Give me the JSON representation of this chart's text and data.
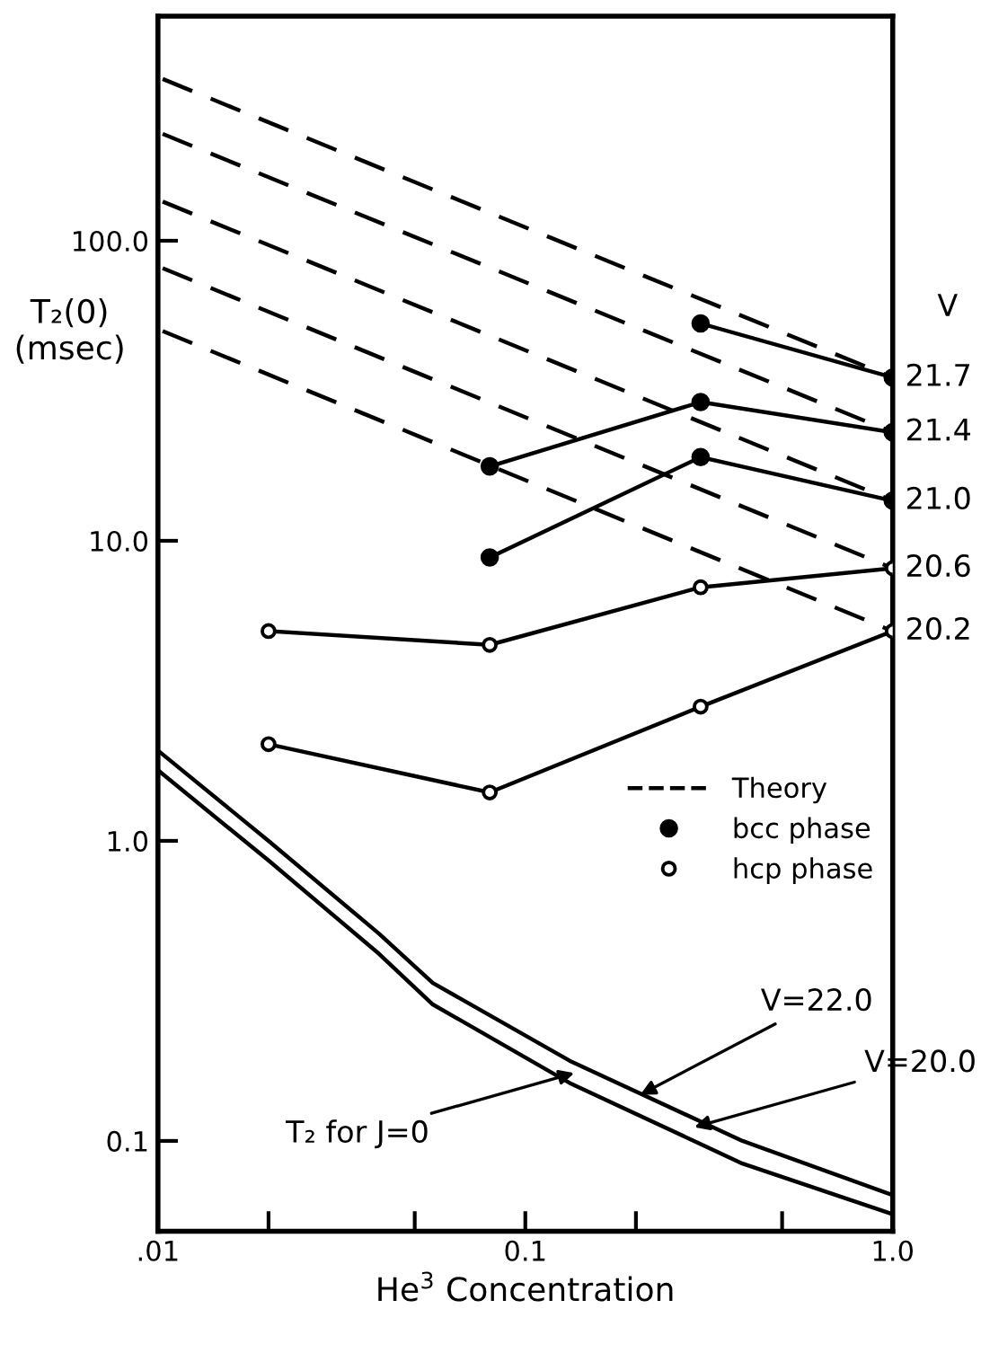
{
  "chart_data": {
    "type": "line",
    "xlabel": "He$^{3}$ Concentration",
    "ylabel": "T₂(0)\n(msec)",
    "log": "xy",
    "grid": false,
    "legend": "right",
    "xlim": [
      0.01,
      1.0
    ],
    "xticks": [
      {
        "value": 0.01,
        "label": ".01"
      },
      {
        "value": 0.02,
        "label": null
      },
      {
        "value": 0.05,
        "label": null
      },
      {
        "value": 0.1,
        "label": "0.1"
      },
      {
        "value": 0.2,
        "label": null
      },
      {
        "value": 0.5,
        "label": null
      },
      {
        "value": 1.0,
        "label": "1.0"
      }
    ],
    "ylim": [
      0.05,
      560
    ],
    "yticks": [
      {
        "value": 0.1,
        "label": "0.1"
      },
      {
        "value": 1,
        "label": "1.0"
      },
      {
        "value": 10,
        "label": "10.0"
      },
      {
        "value": 100,
        "label": "100.0"
      }
    ],
    "series": [
      {
        "name": "Theory",
        "color": "#000000",
        "line_style": "dashed",
        "x": [
          0.0103,
          1.0
        ],
        "values": [
          346,
          35
        ]
      },
      {
        "color": "#000000",
        "line_style": "dashed",
        "x": [
          0.0103,
          1.0
        ],
        "values": [
          227,
          23
        ]
      },
      {
        "color": "#000000",
        "line_style": "dashed",
        "x": [
          0.0103,
          1.0
        ],
        "values": [
          135,
          13.6
        ]
      },
      {
        "color": "#000000",
        "line_style": "dashed",
        "x": [
          0.0103,
          1.0
        ],
        "values": [
          81,
          8.1
        ]
      },
      {
        "color": "#000000",
        "line_style": "dashed",
        "x": [
          0.0103,
          1.0
        ],
        "values": [
          50,
          5.0
        ]
      },
      {
        "name": "bcc phase",
        "color": "#000000",
        "line_style": "solid",
        "marker": "circle",
        "x": [
          0.3,
          1.0
        ],
        "values": [
          53,
          35
        ]
      },
      {
        "color": "#000000",
        "line_style": "solid",
        "marker": "circle",
        "x": [
          0.08,
          0.3,
          1.0
        ],
        "values": [
          17.7,
          29,
          23
        ]
      },
      {
        "color": "#000000",
        "line_style": "solid",
        "marker": "circle",
        "x": [
          0.08,
          0.3,
          1.0
        ],
        "values": [
          8.8,
          19,
          13.6
        ]
      },
      {
        "name": "hcp phase",
        "color": "#000000",
        "line_style": "solid",
        "marker": "circle",
        "x": [
          0.02,
          0.08,
          0.3,
          1.0
        ],
        "values": [
          5.0,
          4.5,
          7.0,
          8.1
        ]
      },
      {
        "color": "#000000",
        "line_style": "solid",
        "marker": "circle",
        "x": [
          0.02,
          0.08,
          0.3,
          1.0
        ],
        "values": [
          2.1,
          1.45,
          2.8,
          5.0
        ]
      },
      {
        "color": "#000000",
        "line_style": "solid",
        "x": [
          0.01,
          0.02,
          0.04,
          0.056,
          0.132,
          0.39,
          1.0
        ],
        "values": [
          2.0,
          1.0,
          0.49,
          0.336,
          0.185,
          0.1,
          0.066
        ]
      },
      {
        "color": "#000000",
        "line_style": "solid",
        "x": [
          0.01,
          0.02,
          0.04,
          0.056,
          0.132,
          0.39,
          1.0
        ],
        "values": [
          1.72,
          0.86,
          0.42,
          0.285,
          0.156,
          0.084,
          0.057
        ]
      }
    ],
    "annotations": [
      "V",
      {
        "text": "21.7",
        "x": 1.0,
        "y": 35
      },
      {
        "text": "21.4",
        "x": 1.0,
        "y": 23
      },
      {
        "text": "21.0",
        "x": 1.0,
        "y": 13.6
      },
      {
        "text": "20.6",
        "x": 1.0,
        "y": 8.1
      },
      {
        "text": "20.2",
        "x": 1.0,
        "y": 5.0
      },
      {
        "text": "T₂ for J=0",
        "x": 0.14,
        "y": 0.17
      },
      {
        "text": "V=22.0",
        "x": 0.2,
        "y": 0.14
      },
      {
        "text": "V=20.0",
        "x": 0.28,
        "y": 0.11
      }
    ]
  }
}
